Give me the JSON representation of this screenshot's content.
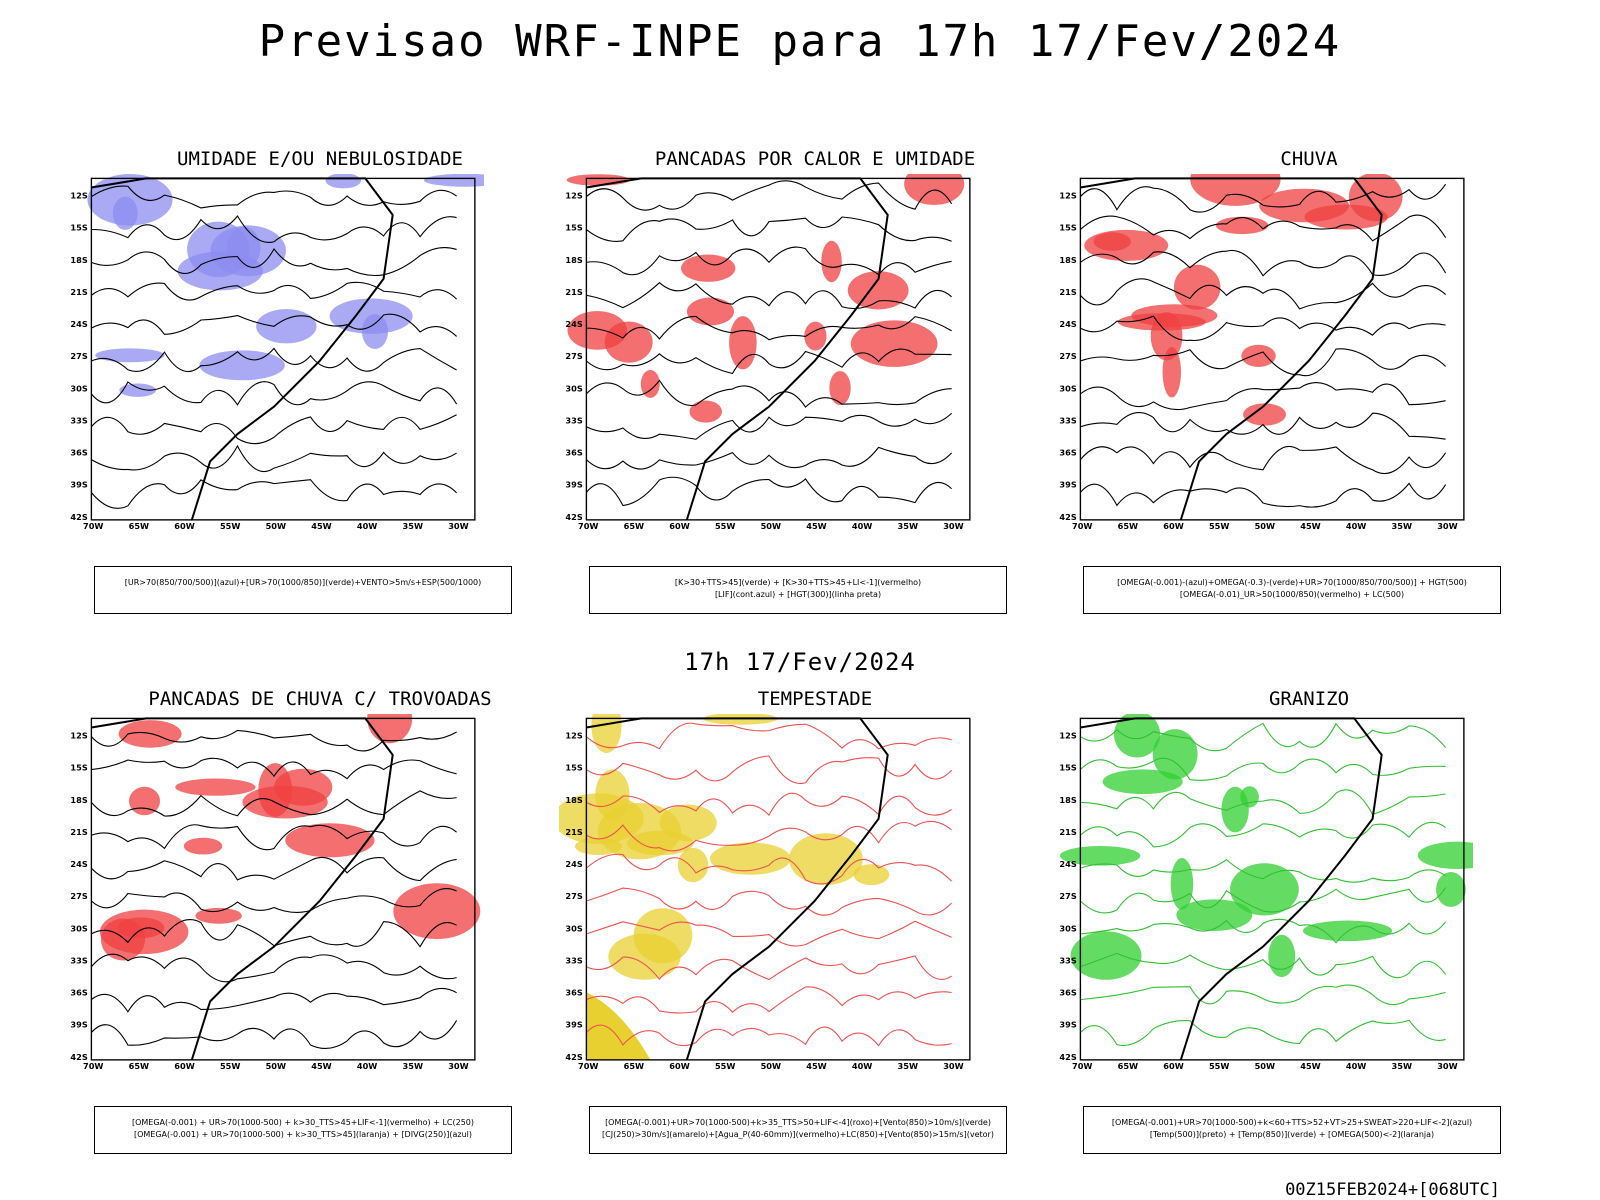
{
  "title": "Previsao WRF-INPE  para 17h 17/Fev/2024",
  "mid_label": "17h 17/Fev/2024",
  "footer": "00Z15FEB2024+[068UTC]",
  "lat_labels": [
    "12S",
    "15S",
    "18S",
    "21S",
    "24S",
    "27S",
    "30S",
    "33S",
    "36S",
    "39S",
    "42S"
  ],
  "lon_labels": [
    "70W",
    "65W",
    "60W",
    "55W",
    "50W",
    "45W",
    "40W",
    "35W",
    "30W"
  ],
  "panels": [
    {
      "title": "UMIDADE E/OU NEBULOSIDADE",
      "legend": [
        "[UR>70(850/700/500)](azul)+[UR>70(1000/850)](verde)+VENTO>5m/s+ESP(500/1000)"
      ],
      "accent": "#8c8cf0"
    },
    {
      "title": "PANCADAS POR CALOR E UMIDADE",
      "legend": [
        "[K>30+TTS>45](verde) + [K>30+TTS>45+LI<-1](vermelho)",
        "[LIF](cont.azul) + [HGT(300)](linha preta)"
      ],
      "accent": "#f04040"
    },
    {
      "title": "CHUVA",
      "legend": [
        "[OMEGA(-0.001)-(azul)+OMEGA(-0.3)-(verde)+UR>70(1000/850/700/500)] + HGT(500)",
        "[OMEGA(-0.01)_UR>50(1000/850)(vermelho) + LC(500)"
      ],
      "accent": "#f04040"
    },
    {
      "title": "PANCADAS DE CHUVA C/ TROVOADAS",
      "legend": [
        "[OMEGA(-0.001) + UR>70(1000-500) + k>30_TTS>45+LIF<-1](vermelho) + LC(250)",
        "[OMEGA(-0.001) + UR>70(1000-500) + k>30_TTS>45](laranja) + [DIVG(250)](azul)"
      ],
      "accent": "#f04040"
    },
    {
      "title": "TEMPESTADE",
      "legend": [
        "[OMEGA(-0.001)+UR>70(1000-500)+k>35_TTS>50+LIF<-4](roxo)+[Vento(850)>10m/s](verde)",
        "[CJ(250)>30m/s](amarelo)+[Agua_P(40-60mm)](vermelho)+LC(850)+[Vento(850)>15m/s](vetor)"
      ],
      "accent": "#e8d030"
    },
    {
      "title": "GRANIZO",
      "legend": [
        "[OMEGA(-0.001)+UR>70(1000-500)+k<60+TTS>52+VT>25+SWEAT>220+LIF<-2](azul)",
        "[Temp(500)](preto) + [Temp(850)](verde) + [OMEGA(500)<-2](laranja)"
      ],
      "accent": "#30d030"
    }
  ]
}
